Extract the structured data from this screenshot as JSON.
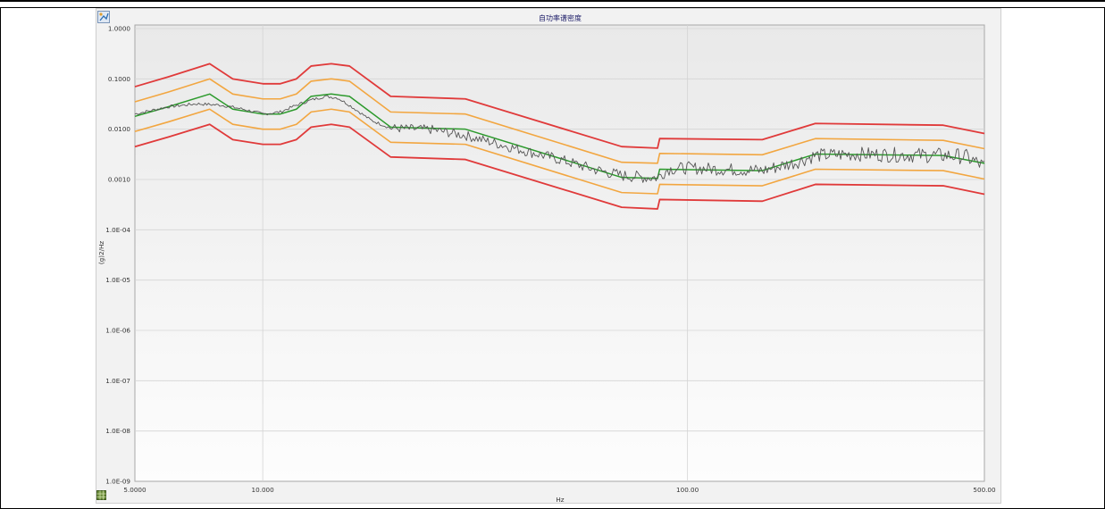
{
  "chart_data": {
    "type": "line",
    "title": "自功率谱密度",
    "xlabel": "Hz",
    "ylabel": "(g)2/Hz",
    "x_scale": "log",
    "y_scale": "log",
    "xlim": [
      5,
      500
    ],
    "ylim": [
      1e-09,
      1
    ],
    "grid": true,
    "x_ticks": [
      {
        "value": 5,
        "label": "5.0000"
      },
      {
        "value": 10,
        "label": "10.000"
      },
      {
        "value": 100,
        "label": "100.00"
      },
      {
        "value": 500,
        "label": "500.00"
      }
    ],
    "y_ticks": [
      {
        "value": 1,
        "label": "1.0000"
      },
      {
        "value": 0.1,
        "label": "0.1000"
      },
      {
        "value": 0.01,
        "label": "0.0100"
      },
      {
        "value": 0.001,
        "label": "0.0010"
      },
      {
        "value": 0.0001,
        "label": "1.0E-04"
      },
      {
        "value": 1e-05,
        "label": "1.0E-05"
      },
      {
        "value": 1e-06,
        "label": "1.0E-06"
      },
      {
        "value": 1e-07,
        "label": "1.0E-07"
      },
      {
        "value": 1e-08,
        "label": "1.0E-08"
      },
      {
        "value": 1e-09,
        "label": "1.0E-09"
      }
    ],
    "series": [
      {
        "role": "abort-upper",
        "color": "#e03a3a",
        "width": 1.8,
        "x": [
          5,
          6,
          7.5,
          8.5,
          10,
          11,
          12,
          13,
          14.5,
          16,
          20,
          30,
          70,
          85,
          86,
          150,
          200,
          400,
          500
        ],
        "y": [
          0.07,
          0.11,
          0.2,
          0.1,
          0.08,
          0.08,
          0.1,
          0.18,
          0.2,
          0.18,
          0.045,
          0.04,
          0.0045,
          0.0042,
          0.0065,
          0.0062,
          0.013,
          0.012,
          0.0082
        ]
      },
      {
        "role": "alarm-upper",
        "color": "#f2a640",
        "width": 1.6,
        "x": [
          5,
          6,
          7.5,
          8.5,
          10,
          11,
          12,
          13,
          14.5,
          16,
          20,
          30,
          70,
          85,
          86,
          150,
          200,
          400,
          500
        ],
        "y": [
          0.035,
          0.055,
          0.1,
          0.05,
          0.04,
          0.04,
          0.05,
          0.09,
          0.1,
          0.09,
          0.022,
          0.02,
          0.0022,
          0.0021,
          0.0033,
          0.0031,
          0.0065,
          0.006,
          0.0041
        ]
      },
      {
        "role": "reference",
        "color": "#2c9a2c",
        "width": 1.5,
        "x": [
          5,
          6,
          7.5,
          8.5,
          10,
          11,
          12,
          13,
          14.5,
          16,
          20,
          30,
          70,
          85,
          86,
          150,
          200,
          400,
          500
        ],
        "y": [
          0.018,
          0.028,
          0.05,
          0.025,
          0.02,
          0.02,
          0.025,
          0.045,
          0.05,
          0.045,
          0.011,
          0.01,
          0.0011,
          0.00105,
          0.0016,
          0.0015,
          0.0032,
          0.003,
          0.0021
        ]
      },
      {
        "role": "alarm-lower",
        "color": "#f2a640",
        "width": 1.6,
        "x": [
          5,
          6,
          7.5,
          8.5,
          10,
          11,
          12,
          13,
          14.5,
          16,
          20,
          30,
          70,
          85,
          86,
          150,
          200,
          400,
          500
        ],
        "y": [
          0.009,
          0.014,
          0.025,
          0.0125,
          0.01,
          0.01,
          0.0125,
          0.022,
          0.025,
          0.022,
          0.0055,
          0.005,
          0.00055,
          0.00052,
          0.0008,
          0.00075,
          0.0016,
          0.0015,
          0.00102
        ]
      },
      {
        "role": "abort-lower",
        "color": "#e03a3a",
        "width": 1.8,
        "x": [
          5,
          6,
          7.5,
          8.5,
          10,
          11,
          12,
          13,
          14.5,
          16,
          20,
          30,
          70,
          85,
          86,
          150,
          200,
          400,
          500
        ],
        "y": [
          0.0045,
          0.007,
          0.0125,
          0.0062,
          0.005,
          0.005,
          0.0062,
          0.011,
          0.0125,
          0.011,
          0.0028,
          0.0025,
          0.00028,
          0.00026,
          0.0004,
          0.00037,
          0.0008,
          0.00075,
          0.00051
        ]
      },
      {
        "role": "control",
        "color": "#555555",
        "width": 0.9,
        "noise": true,
        "x": [
          5,
          6,
          7,
          8,
          9,
          10,
          11,
          12,
          13,
          14,
          15,
          16,
          18,
          20,
          25,
          30,
          40,
          50,
          60,
          70,
          80,
          85,
          90,
          100,
          120,
          150,
          180,
          200,
          250,
          300,
          400,
          450,
          500
        ],
        "y": [
          0.02,
          0.028,
          0.032,
          0.03,
          0.025,
          0.02,
          0.022,
          0.03,
          0.038,
          0.045,
          0.042,
          0.03,
          0.015,
          0.0105,
          0.0098,
          0.0075,
          0.004,
          0.0025,
          0.0016,
          0.0012,
          0.0011,
          0.0011,
          0.0016,
          0.0017,
          0.0016,
          0.0015,
          0.0022,
          0.003,
          0.0032,
          0.0031,
          0.003,
          0.0029,
          0.0018
        ]
      }
    ]
  }
}
